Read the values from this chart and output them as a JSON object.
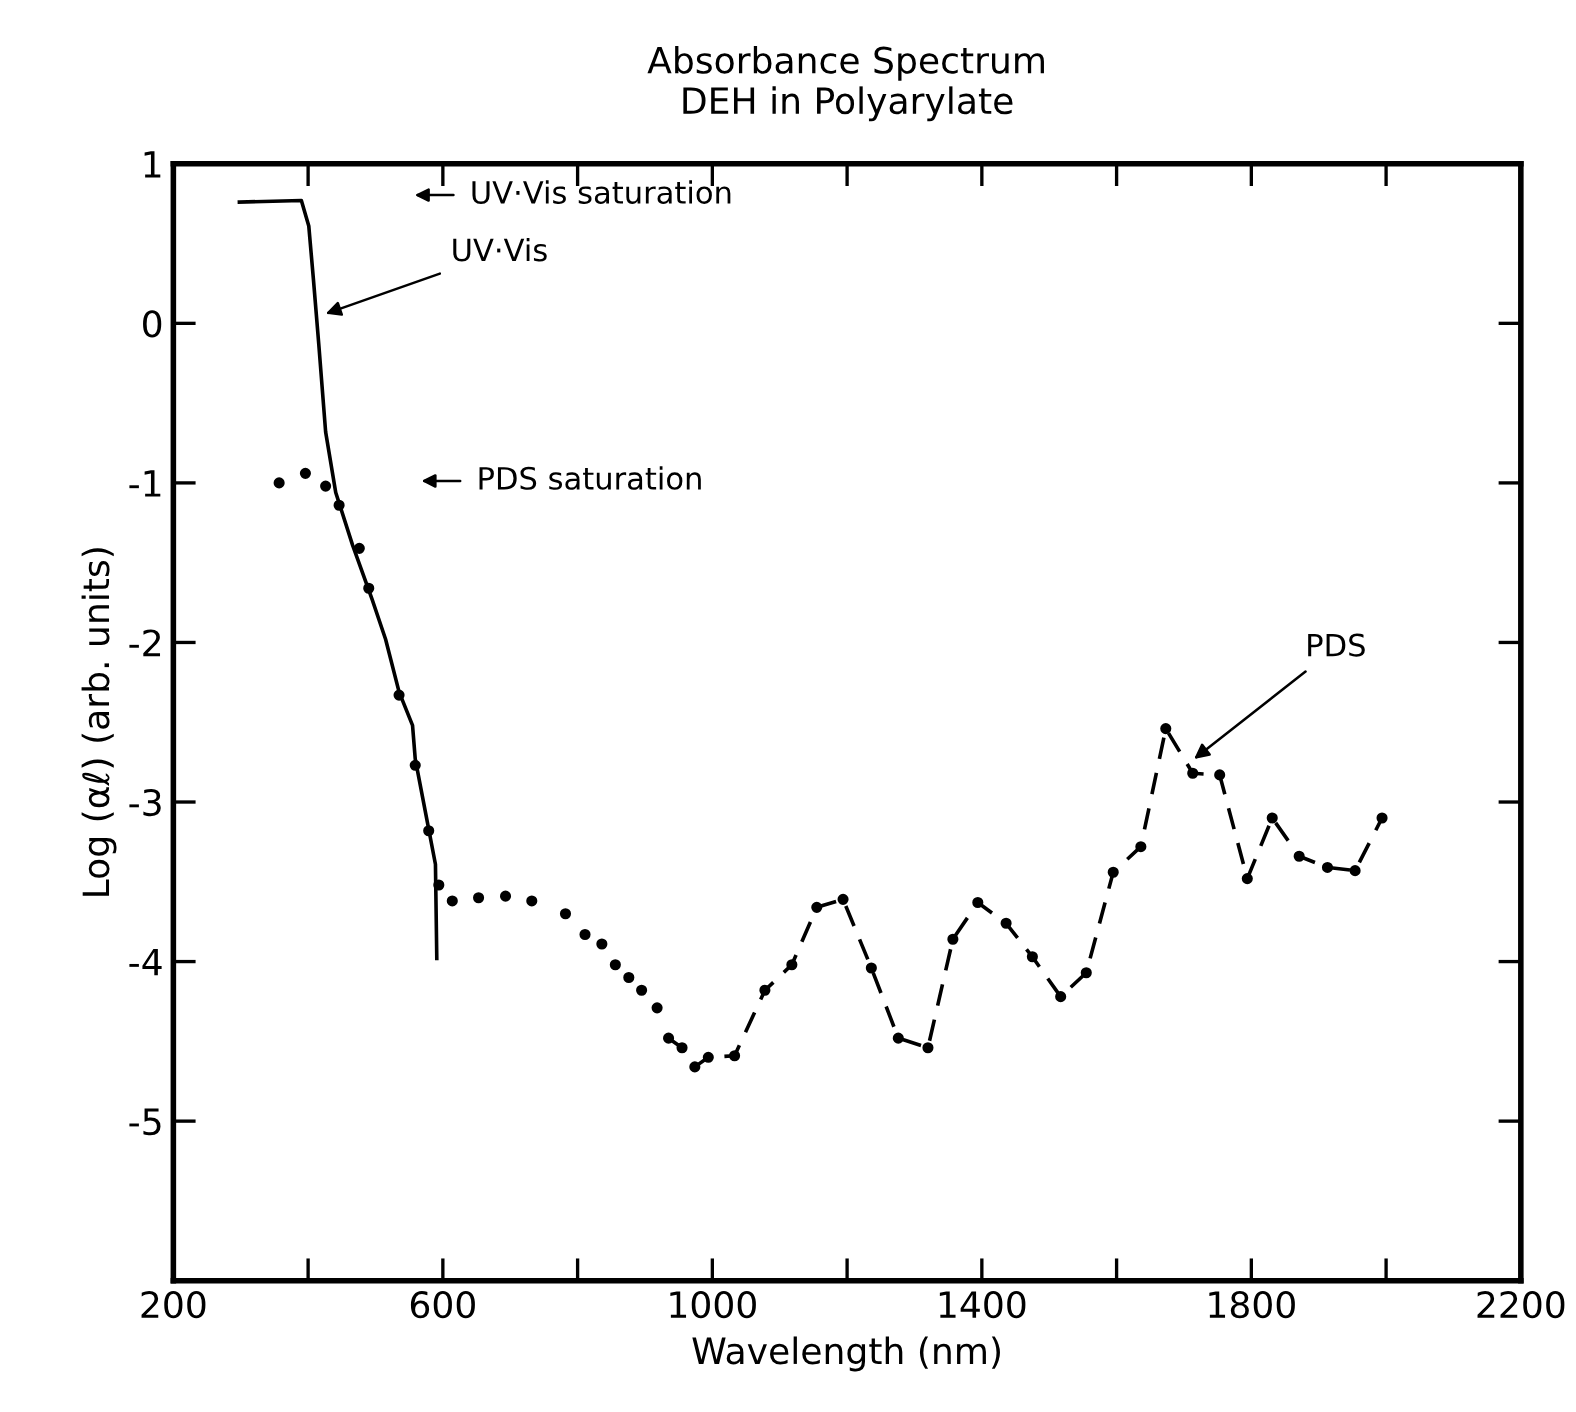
{
  "chart_data": {
    "type": "line",
    "title": "Absorbance Spectrum\nDEH in Polyarylate",
    "xlabel": "Wavelength (nm)",
    "ylabel": "Log (αℓ) (arb. units)",
    "xlim": [
      200,
      2200
    ],
    "ylim": [
      -6,
      1
    ],
    "xticks": [
      200,
      {
        "value": 400,
        "label": null
      },
      600,
      {
        "value": 800,
        "label": null
      },
      1000,
      {
        "value": 1200,
        "label": null
      },
      1400,
      {
        "value": 1600,
        "label": null
      },
      1800,
      {
        "value": 2000,
        "label": null
      },
      2200
    ],
    "yticks": [
      1,
      0,
      -1,
      -2,
      -3,
      -4,
      -5
    ],
    "grid": false,
    "series": [
      {
        "color": "#000000",
        "marker": "none",
        "line_style": "solid",
        "x": [
          298,
          390,
          401,
          408,
          416,
          426,
          441,
          466,
          495,
          515,
          535,
          555,
          559,
          574,
          589,
          591
        ],
        "values": [
          0.76,
          0.77,
          0.61,
          0.27,
          -0.14,
          -0.68,
          -1.06,
          -1.39,
          -1.73,
          -1.98,
          -2.31,
          -2.52,
          -2.73,
          -3.06,
          -3.39,
          -3.98
        ]
      },
      {
        "type": "scatter",
        "color": "#000000",
        "marker": "circle",
        "x": [
          357,
          396,
          426,
          446,
          476,
          490,
          535,
          559,
          579,
          594,
          614,
          653,
          693,
          732,
          782,
          811,
          836,
          856,
          876,
          895,
          918
        ],
        "values": [
          -1.0,
          -0.94,
          -1.02,
          -1.14,
          -1.41,
          -1.66,
          -2.33,
          -2.77,
          -3.18,
          -3.52,
          -3.62,
          -3.6,
          -3.59,
          -3.62,
          -3.7,
          -3.83,
          -3.89,
          -4.02,
          -4.1,
          -4.18,
          -4.29
        ]
      },
      {
        "color": "#000000",
        "marker": "circle",
        "line_style": "dashed",
        "x": [
          935,
          955,
          974,
          994,
          1033,
          1078,
          1118,
          1155,
          1194,
          1236,
          1276,
          1320,
          1357,
          1394,
          1436,
          1475,
          1517,
          1555,
          1595,
          1636,
          1673,
          1713,
          1753,
          1794,
          1831,
          1871,
          1913,
          1954,
          1994
        ],
        "values": [
          -4.48,
          -4.54,
          -4.66,
          -4.6,
          -4.59,
          -4.18,
          -4.02,
          -3.66,
          -3.61,
          -4.04,
          -4.48,
          -4.54,
          -3.86,
          -3.63,
          -3.76,
          -3.97,
          -4.22,
          -4.07,
          -3.44,
          -3.28,
          -2.54,
          -2.82,
          -2.83,
          -3.48,
          -3.1,
          -3.34,
          -3.41,
          -3.43,
          -3.1
        ]
      }
    ],
    "annotations": [
      "UV·Vis saturation",
      {
        "text": "UV·Vis",
        "x": 426,
        "y": 0.06
      },
      "PDS saturation",
      {
        "text": "PDS",
        "x": 1715,
        "y": -2.73
      }
    ]
  }
}
